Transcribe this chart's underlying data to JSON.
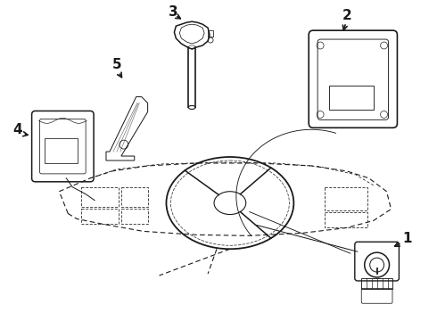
{
  "bg_color": "#ffffff",
  "line_color": "#1a1a1a",
  "lw": 0.8,
  "fig_width": 4.9,
  "fig_height": 3.6,
  "dpi": 100,
  "labels": {
    "1": [
      440,
      70,
      415,
      82
    ],
    "2": [
      390,
      18,
      385,
      35
    ],
    "3": [
      195,
      8,
      205,
      22
    ],
    "4": [
      18,
      148,
      35,
      155
    ],
    "5": [
      130,
      75,
      140,
      92
    ]
  }
}
